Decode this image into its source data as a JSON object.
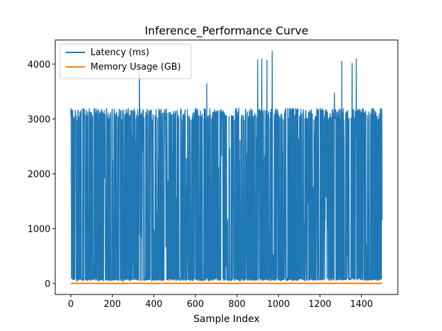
{
  "chart_data": {
    "type": "line",
    "title": "Inference_Performance Curve",
    "xlabel": "Sample Index",
    "ylabel": "",
    "xlim": [
      -75,
      1575
    ],
    "ylim": [
      -200,
      4440
    ],
    "x_ticks": [
      0,
      200,
      400,
      600,
      800,
      1000,
      1200,
      1400
    ],
    "y_ticks": [
      0,
      1000,
      2000,
      3000,
      4000
    ],
    "grid": false,
    "legend_position": "top-left",
    "series": [
      {
        "name": "Latency (ms)",
        "color": "#1f77b4",
        "n_samples": 1500,
        "base_low": 50,
        "base_high": 3100,
        "peaks": [
          {
            "x": 330,
            "y": 4020
          },
          {
            "x": 655,
            "y": 3650
          },
          {
            "x": 900,
            "y": 4080
          },
          {
            "x": 920,
            "y": 4100
          },
          {
            "x": 945,
            "y": 4080
          },
          {
            "x": 970,
            "y": 4240
          },
          {
            "x": 1270,
            "y": 3480
          },
          {
            "x": 1305,
            "y": 4060
          },
          {
            "x": 1355,
            "y": 4020
          },
          {
            "x": 1375,
            "y": 4100
          }
        ]
      },
      {
        "name": "Memory Usage (GB)",
        "color": "#ff7f0e",
        "constant_value": 2
      }
    ]
  }
}
